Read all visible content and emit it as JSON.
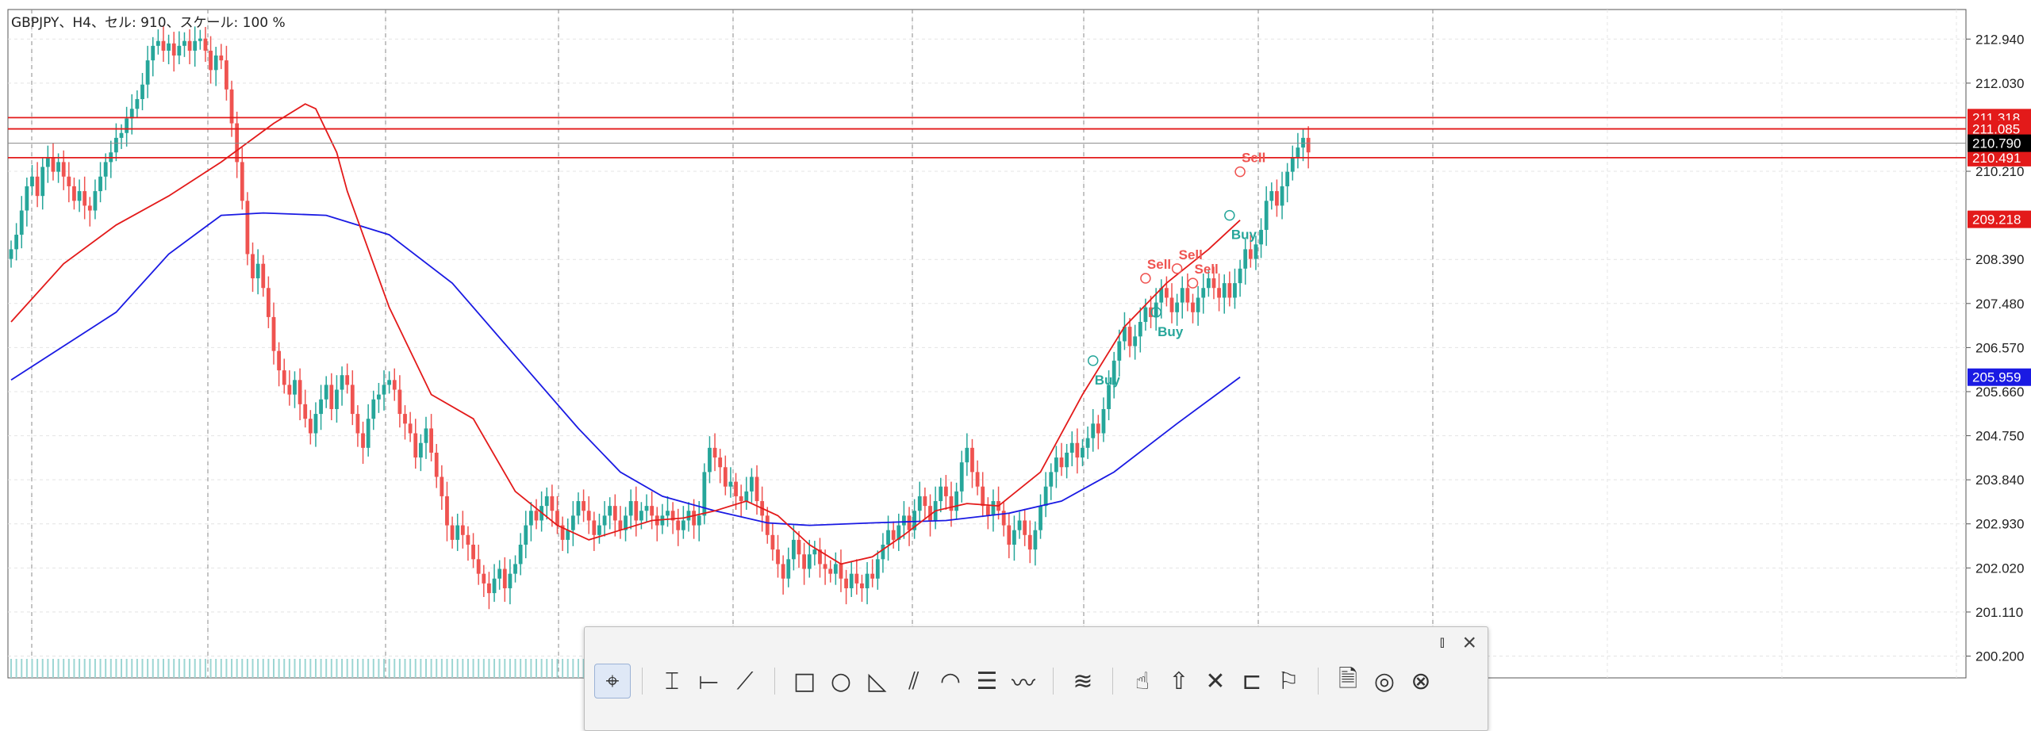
{
  "header": {
    "title": "GBPJPY、H4、セル: 910、スケール: 100 %"
  },
  "colors": {
    "bull": "#26a69a",
    "bear": "#ef5350",
    "ma_fast": "#e31a1a",
    "ma_slow": "#1a1ae3",
    "level": "#e31a1a",
    "current": "#888888",
    "buy": "#26a69a",
    "sell": "#ef5350",
    "grid": "#e4e4e4"
  },
  "chart_data": {
    "type": "candlestick",
    "symbol": "GBPJPY",
    "timeframe": "H4",
    "ylim": [
      199.75,
      213.55
    ],
    "xlim": [
      0,
      300
    ],
    "y_ticks": [
      "212.940",
      "212.030",
      "210.210",
      "208.390",
      "207.480",
      "206.570",
      "205.660",
      "204.750",
      "203.840",
      "202.930",
      "202.020",
      "201.110",
      "200.200"
    ],
    "price_levels": [
      {
        "value": 211.318,
        "label": "211.318",
        "color": "#e31a1a"
      },
      {
        "value": 211.085,
        "label": "211.085",
        "color": "#e31a1a"
      },
      {
        "value": 210.491,
        "label": "210.491",
        "color": "#e31a1a"
      }
    ],
    "current_price": {
      "value": 210.79,
      "label": "210.790"
    },
    "ma_fast_label": {
      "value": 209.218,
      "label": "209.218"
    },
    "ma_slow_label": {
      "value": 205.959,
      "label": "205.959"
    },
    "ma_fast": [
      [
        0,
        207.1
      ],
      [
        10,
        208.3
      ],
      [
        20,
        209.1
      ],
      [
        30,
        209.7
      ],
      [
        40,
        210.4
      ],
      [
        50,
        211.2
      ],
      [
        56,
        211.6
      ],
      [
        58,
        211.5
      ],
      [
        62,
        210.6
      ],
      [
        64,
        209.8
      ],
      [
        72,
        207.4
      ],
      [
        80,
        205.6
      ],
      [
        88,
        205.1
      ],
      [
        96,
        203.6
      ],
      [
        104,
        202.9
      ],
      [
        110,
        202.6
      ],
      [
        116,
        202.8
      ],
      [
        122,
        203.0
      ],
      [
        128,
        203.05
      ],
      [
        134,
        203.2
      ],
      [
        140,
        203.4
      ],
      [
        146,
        203.1
      ],
      [
        152,
        202.5
      ],
      [
        158,
        202.1
      ],
      [
        164,
        202.25
      ],
      [
        170,
        202.7
      ],
      [
        176,
        203.2
      ],
      [
        182,
        203.35
      ],
      [
        188,
        203.3
      ],
      [
        196,
        204.0
      ],
      [
        204,
        205.6
      ],
      [
        212,
        207.0
      ],
      [
        220,
        207.9
      ],
      [
        228,
        208.6
      ],
      [
        234,
        209.2
      ]
    ],
    "ma_slow": [
      [
        0,
        205.9
      ],
      [
        20,
        207.3
      ],
      [
        30,
        208.5
      ],
      [
        40,
        209.3
      ],
      [
        48,
        209.35
      ],
      [
        60,
        209.3
      ],
      [
        72,
        208.9
      ],
      [
        84,
        207.9
      ],
      [
        96,
        206.4
      ],
      [
        108,
        204.9
      ],
      [
        116,
        204.0
      ],
      [
        124,
        203.5
      ],
      [
        134,
        203.2
      ],
      [
        144,
        202.95
      ],
      [
        152,
        202.9
      ],
      [
        164,
        202.95
      ],
      [
        178,
        203.0
      ],
      [
        190,
        203.15
      ],
      [
        200,
        203.4
      ],
      [
        210,
        204.0
      ],
      [
        222,
        205.0
      ],
      [
        234,
        205.96
      ]
    ],
    "close": [
      208.6,
      208.9,
      209.4,
      209.9,
      210.1,
      209.7,
      210.3,
      210.5,
      210.2,
      210.4,
      210.1,
      209.9,
      209.6,
      209.8,
      209.5,
      209.4,
      209.8,
      210.1,
      210.4,
      210.6,
      210.9,
      211.0,
      211.3,
      211.5,
      211.7,
      212.0,
      212.5,
      212.8,
      212.9,
      212.7,
      212.85,
      212.6,
      212.8,
      212.9,
      212.7,
      212.9,
      212.95,
      212.7,
      212.3,
      212.6,
      212.5,
      211.9,
      211.2,
      210.4,
      209.6,
      208.5,
      208.0,
      208.3,
      207.8,
      207.2,
      206.5,
      206.1,
      205.8,
      205.6,
      205.9,
      205.4,
      205.1,
      204.8,
      205.2,
      205.5,
      205.8,
      205.3,
      205.7,
      206.0,
      205.8,
      205.2,
      204.8,
      204.5,
      205.1,
      205.5,
      205.6,
      205.8,
      205.9,
      205.7,
      205.2,
      205.0,
      204.8,
      204.3,
      204.6,
      204.9,
      204.4,
      203.9,
      203.5,
      202.9,
      202.6,
      202.9,
      202.7,
      202.5,
      202.2,
      201.9,
      201.7,
      201.5,
      201.8,
      202.0,
      201.6,
      201.9,
      202.1,
      202.5,
      202.9,
      203.2,
      203.0,
      203.3,
      203.5,
      203.2,
      202.9,
      202.6,
      202.8,
      203.1,
      203.4,
      203.2,
      203.0,
      202.7,
      202.9,
      203.1,
      203.3,
      203.0,
      202.8,
      203.1,
      203.4,
      203.0,
      203.2,
      203.3,
      203.1,
      202.9,
      203.1,
      203.2,
      203.0,
      202.8,
      203.0,
      203.2,
      202.9,
      203.1,
      204.0,
      204.5,
      204.3,
      204.1,
      203.7,
      203.8,
      203.5,
      203.4,
      203.6,
      203.9,
      203.4,
      203.1,
      202.7,
      202.4,
      202.1,
      201.8,
      202.2,
      202.6,
      202.3,
      202.0,
      202.3,
      202.4,
      202.1,
      202.0,
      201.9,
      202.1,
      201.8,
      201.6,
      201.9,
      201.7,
      201.6,
      201.9,
      201.8,
      202.2,
      202.5,
      202.8,
      202.6,
      202.9,
      203.1,
      202.8,
      203.2,
      203.5,
      203.3,
      203.0,
      203.4,
      203.7,
      203.5,
      203.2,
      203.6,
      204.2,
      204.5,
      204.0,
      203.7,
      203.3,
      203.1,
      203.4,
      203.2,
      202.9,
      202.5,
      202.8,
      203.0,
      202.7,
      202.4,
      202.8,
      203.3,
      203.7,
      204.0,
      204.3,
      204.1,
      204.4,
      204.6,
      204.3,
      204.5,
      204.7,
      205.0,
      204.8,
      205.3,
      205.8,
      206.3,
      206.7,
      207.0,
      206.6,
      206.8,
      207.1,
      207.4,
      207.2,
      207.5,
      207.8,
      207.6,
      207.3,
      207.5,
      207.8,
      207.5,
      207.3,
      207.6,
      207.8,
      208.0,
      207.8,
      207.6,
      207.9,
      207.6,
      207.9,
      208.2,
      208.6,
      208.4,
      208.7,
      209.0,
      209.6,
      209.8,
      209.5,
      209.9,
      210.2,
      210.5,
      210.7,
      210.9,
      210.6
    ],
    "signals": [
      {
        "i": 206,
        "label": "Buy",
        "type": "buy",
        "price": 206.3
      },
      {
        "i": 216,
        "label": "Sell",
        "type": "sell",
        "price": 208.0
      },
      {
        "i": 218,
        "label": "Buy",
        "type": "buy",
        "price": 207.3
      },
      {
        "i": 222,
        "label": "Sell",
        "type": "sell",
        "price": 208.2
      },
      {
        "i": 225,
        "label": "Sell",
        "type": "sell",
        "price": 207.9
      },
      {
        "i": 232,
        "label": "Buy",
        "type": "buy",
        "price": 209.3
      },
      {
        "i": 234,
        "label": "Sell",
        "type": "sell",
        "price": 210.2
      }
    ],
    "grid": true
  },
  "toolbar": {
    "pin_icon": "pin-icon",
    "close_icon": "close-icon",
    "tools": [
      {
        "name": "cursor-icon",
        "glyph": "⌖",
        "active": true
      },
      {
        "sep": true
      },
      {
        "name": "vertical-line-icon",
        "glyph": "⌶"
      },
      {
        "name": "horizontal-line-icon",
        "glyph": "⟝"
      },
      {
        "name": "trendline-icon",
        "glyph": "⟋"
      },
      {
        "sep": true
      },
      {
        "name": "rectangle-icon",
        "glyph": "□"
      },
      {
        "name": "ellipse-icon",
        "glyph": "○"
      },
      {
        "name": "triangle-icon",
        "glyph": "◺"
      },
      {
        "name": "pitchfork-icon",
        "glyph": "⫽"
      },
      {
        "name": "fibo-arc-icon",
        "glyph": "◠"
      },
      {
        "name": "fibo-retracement-icon",
        "glyph": "☰"
      },
      {
        "name": "elliott-wave-icon",
        "glyph": "〰"
      },
      {
        "sep": true
      },
      {
        "name": "channel-icon",
        "glyph": "≋"
      },
      {
        "sep": true
      },
      {
        "name": "thumb-up-icon",
        "glyph": "☝"
      },
      {
        "name": "arrow-up-icon",
        "glyph": "⇧"
      },
      {
        "name": "cross-icon",
        "glyph": "✕"
      },
      {
        "name": "price-label-icon",
        "glyph": "⊏"
      },
      {
        "name": "flag-icon",
        "glyph": "⚐"
      },
      {
        "sep": true
      },
      {
        "name": "template-icon",
        "glyph": "🗎"
      },
      {
        "name": "target-icon",
        "glyph": "◎"
      },
      {
        "name": "target-cancel-icon",
        "glyph": "⊗"
      }
    ]
  }
}
